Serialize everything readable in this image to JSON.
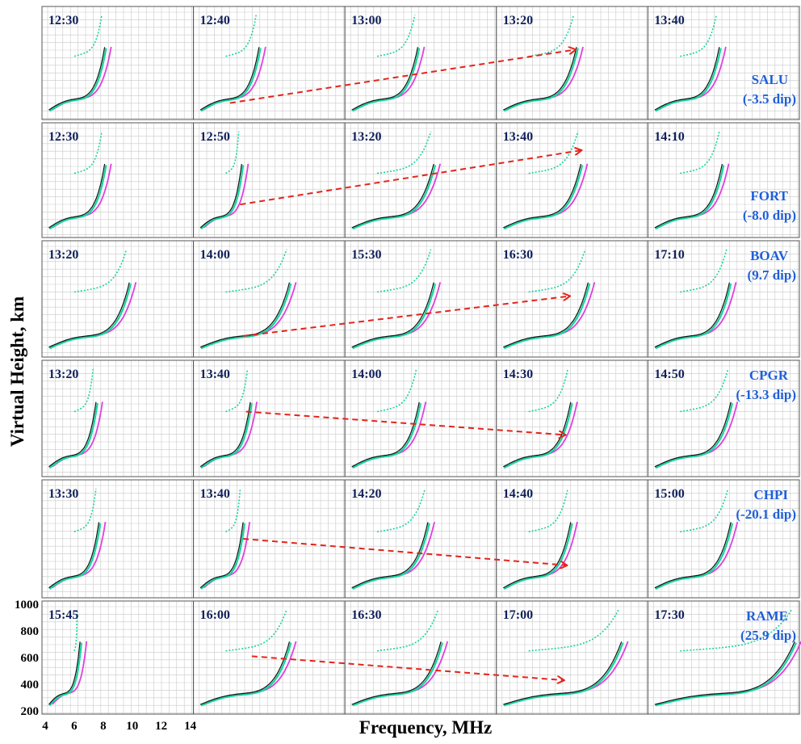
{
  "figure": {
    "ylabel": "Virtual Height, km",
    "xlabel": "Frequency, MHz"
  },
  "chart_data": {
    "type": "scatter",
    "xlabel": "Frequency, MHz",
    "ylabel": "Virtual Height, km",
    "xlim": [
      4,
      14
    ],
    "ylim": [
      200,
      1000
    ],
    "x_ticks": [
      "4",
      "6",
      "8",
      "10",
      "12",
      "14"
    ],
    "y_ticks": [
      "1000",
      "800",
      "600",
      "400",
      "200"
    ],
    "grid": true,
    "colors": {
      "trace_black": "#111111",
      "trace_green": "#19d3a0",
      "trace_magenta": "#e040e0",
      "trace_blue": "#1a6ae0",
      "arrow": "#e4241b",
      "station_text": "#1f5fd8",
      "time_text": "#10205a",
      "grid": "#c9c9c9"
    },
    "stations": [
      {
        "name": "SALU",
        "dip": "(-3.5 dip)",
        "times": [
          "12:30",
          "12:40",
          "13:00",
          "13:20",
          "13:40"
        ],
        "fos": [
          8.2,
          8.4,
          8.9,
          9.4,
          8.8
        ],
        "arrow": {
          "from": [
            1,
            6.3,
            300
          ],
          "to": [
            3,
            9.2,
            700
          ]
        }
      },
      {
        "name": "FORT",
        "dip": "(-8.0 dip)",
        "times": [
          "12:30",
          "12:50",
          "13:20",
          "13:40",
          "14:10"
        ],
        "fos": [
          8.2,
          7.2,
          10.0,
          9.7,
          9.0
        ],
        "arrow": {
          "from": [
            1,
            7.0,
            420
          ],
          "to": [
            3,
            9.6,
            820
          ]
        }
      },
      {
        "name": "BOAV",
        "dip": "(9.7 dip)",
        "times": [
          "13:20",
          "14:00",
          "15:30",
          "16:30",
          "17:10"
        ],
        "fos": [
          9.9,
          10.5,
          10.0,
          10.2,
          9.5
        ],
        "arrow": {
          "from": [
            1,
            7.2,
            330
          ],
          "to": [
            3,
            8.8,
            620
          ]
        }
      },
      {
        "name": "CPGR",
        "dip": "(-13.3 dip)",
        "times": [
          "13:20",
          "13:40",
          "14:00",
          "14:30",
          "14:50"
        ],
        "fos": [
          7.6,
          7.8,
          9.0,
          9.0,
          9.6
        ],
        "arrow": {
          "from": [
            1,
            7.4,
            650
          ],
          "to": [
            3,
            8.5,
            480
          ]
        }
      },
      {
        "name": "CHPI",
        "dip": "(-20.1 dip)",
        "times": [
          "13:30",
          "13:40",
          "14:20",
          "14:40",
          "15:00"
        ],
        "fos": [
          7.8,
          7.3,
          9.6,
          9.0,
          9.6
        ],
        "arrow": {
          "from": [
            1,
            7.2,
            600
          ],
          "to": [
            3,
            8.6,
            410
          ]
        }
      },
      {
        "name": "RAME",
        "dip": "(25.9 dip)",
        "times": [
          "15:45",
          "16:00",
          "16:30",
          "17:00",
          "17:30"
        ],
        "fos": [
          6.5,
          10.5,
          10.5,
          12.5,
          14.0
        ],
        "arrow": {
          "from": [
            1,
            7.8,
            610
          ],
          "to": [
            3,
            8.4,
            430
          ]
        }
      }
    ]
  }
}
